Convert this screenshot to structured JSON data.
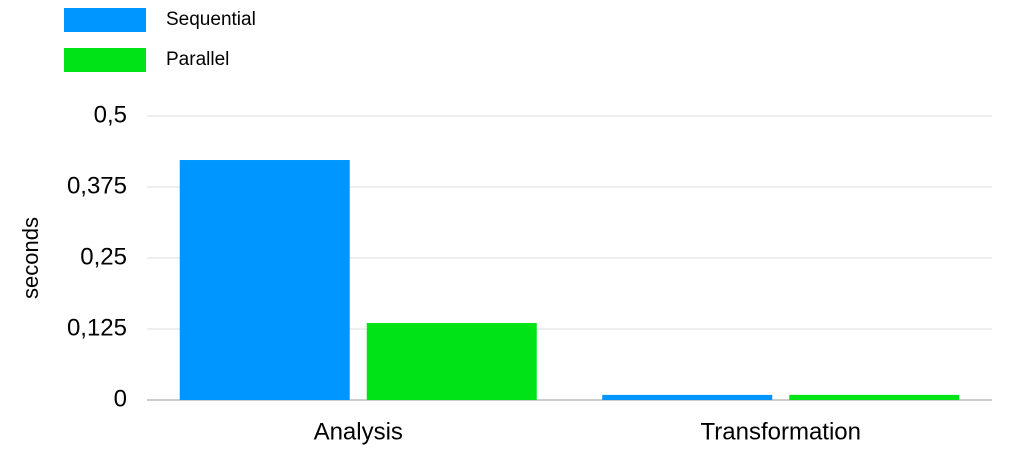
{
  "chart_data": {
    "type": "bar",
    "y_label": "seconds",
    "categories": [
      "Analysis",
      "Transformation"
    ],
    "series": [
      {
        "name": "Sequential",
        "color": "#0096ff",
        "values": [
          0.4225,
          0.009
        ]
      },
      {
        "name": "Parallel",
        "color": "#00e417",
        "values": [
          0.1355,
          0.009
        ]
      }
    ],
    "ylim": [
      0,
      0.5
    ],
    "yticks": [
      0,
      {
        "value": 0.125,
        "label": "0,125"
      },
      {
        "value": 0.25,
        "label": "0,25"
      },
      {
        "value": 0.375,
        "label": "0,375"
      },
      {
        "value": 0.5,
        "label": "0,5"
      }
    ],
    "grid": true,
    "legend": "top-left"
  }
}
